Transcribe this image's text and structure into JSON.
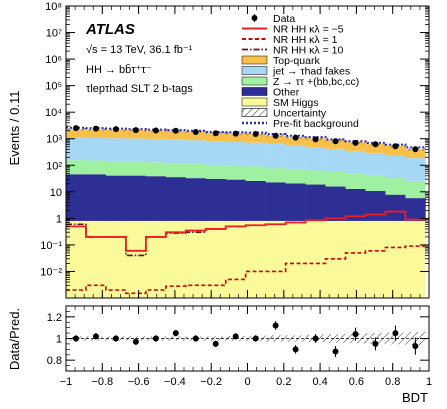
{
  "chart_data": [
    {
      "type": "bar",
      "stacked": true,
      "log_y": true,
      "ylabel": "Events / 0.11",
      "ylim": [
        0.001,
        100000000
      ],
      "xlim": [
        -1,
        1
      ],
      "y_tick_labels": [
        "10⁻²",
        "10⁻¹",
        "1",
        "10",
        "10²",
        "10³",
        "10⁴",
        "10⁵",
        "10⁶",
        "10⁷",
        "10⁸"
      ],
      "y_tick_values": [
        0.01,
        0.1,
        1,
        10,
        100,
        1000,
        10000,
        100000,
        1000000,
        10000000,
        100000000
      ],
      "x_edges": [
        -1,
        -0.89,
        -0.78,
        -0.67,
        -0.56,
        -0.45,
        -0.34,
        -0.23,
        -0.12,
        -0.01,
        0.1,
        0.21,
        0.32,
        0.43,
        0.54,
        0.65,
        0.76,
        0.87,
        0.98
      ],
      "annotations": {
        "experiment": "ATLAS",
        "energy": "√s = 13 TeV, 36.1 fb⁻¹",
        "process": "HH → bb̄τ⁺τ⁻",
        "channel": "τlepτhad SLT 2 b-tags"
      },
      "legend_position": "top-right",
      "legend": [
        {
          "key": "data",
          "label": "Data"
        },
        {
          "key": "sig_m5",
          "label": "NR HH κλ = −5"
        },
        {
          "key": "sig_1",
          "label": "NR HH κλ = 1"
        },
        {
          "key": "sig_10",
          "label": "NR HH κλ = 10"
        },
        {
          "key": "top",
          "label": "Top-quark"
        },
        {
          "key": "fake",
          "label": "jet → τhad fakes"
        },
        {
          "key": "ztt",
          "label": "Z → ττ +(bb,bc,cc)"
        },
        {
          "key": "other",
          "label": "Other"
        },
        {
          "key": "smh",
          "label": "SM Higgs"
        },
        {
          "key": "unc",
          "label": "Uncertainty"
        },
        {
          "key": "prefit",
          "label": "Pre-fit background"
        }
      ],
      "colors": {
        "top": "#f7c04a",
        "fake": "#a6d8f5",
        "ztt": "#9ff0a0",
        "other": "#2e2f94",
        "smh": "#fafa9b",
        "sig_m5": "#ee1c24",
        "sig_1": "#d40000",
        "sig_10": "#6b1010",
        "prefit": "#2326c6"
      },
      "series": [
        {
          "name": "SM Higgs",
          "key": "smh",
          "values": [
            0.8,
            0.8,
            0.8,
            0.8,
            0.8,
            0.8,
            0.8,
            0.8,
            0.8,
            0.8,
            0.8,
            0.8,
            0.8,
            0.8,
            0.8,
            0.8,
            0.8,
            0.8
          ]
        },
        {
          "name": "Other",
          "key": "other",
          "values": [
            45,
            45,
            40,
            40,
            38,
            35,
            32,
            30,
            28,
            25,
            22,
            20,
            18,
            15,
            12,
            10,
            7,
            5
          ]
        },
        {
          "name": "Z → ττ +(bb,bc,cc)",
          "key": "ztt",
          "values": [
            110,
            105,
            100,
            95,
            90,
            85,
            80,
            72,
            70,
            65,
            55,
            50,
            45,
            40,
            35,
            30,
            25,
            20
          ]
        },
        {
          "name": "jet → τhad fakes",
          "key": "fake",
          "values": [
            950,
            920,
            900,
            880,
            860,
            820,
            760,
            700,
            650,
            620,
            560,
            480,
            420,
            360,
            300,
            240,
            200,
            160
          ]
        },
        {
          "name": "Top-quark",
          "key": "top",
          "values": [
            1200,
            1200,
            1150,
            1100,
            1080,
            1050,
            1000,
            900,
            850,
            800,
            700,
            600,
            550,
            480,
            400,
            350,
            300,
            220
          ]
        }
      ],
      "data_points": {
        "x": [
          -0.945,
          -0.835,
          -0.725,
          -0.615,
          -0.505,
          -0.395,
          -0.285,
          -0.175,
          -0.065,
          0.045,
          0.155,
          0.265,
          0.375,
          0.485,
          0.595,
          0.705,
          0.815,
          0.925
        ],
        "y": [
          2500,
          2400,
          2300,
          2100,
          2050,
          2000,
          1800,
          1600,
          1550,
          1500,
          1300,
          1100,
          950,
          800,
          700,
          620,
          520,
          400
        ]
      },
      "prefit_background": [
        2600,
        2500,
        2400,
        2300,
        2200,
        2100,
        2000,
        1800,
        1750,
        1700,
        1500,
        1300,
        1150,
        950,
        800,
        700,
        600,
        470
      ],
      "signals": {
        "sig_m5": [
          0.5,
          0.2,
          0.2,
          0.06,
          0.2,
          0.3,
          0.35,
          0.4,
          0.5,
          0.55,
          0.6,
          0.7,
          0.85,
          1.0,
          1.2,
          1.4,
          1.8,
          0.9
        ],
        "sig_1": [
          0.002,
          0.003,
          0.002,
          0.0015,
          0.002,
          0.0028,
          0.003,
          0.003,
          0.005,
          0.01,
          0.01,
          0.02,
          0.02,
          0.03,
          0.05,
          0.06,
          0.08,
          0.09
        ],
        "sig_10": [
          0.6,
          0.2,
          0.2,
          0.04,
          0.2,
          0.28,
          0.3,
          0.4,
          0.5,
          0.55,
          0.6,
          0.7,
          0.85,
          1.0,
          1.2,
          1.4,
          1.8,
          0.9
        ]
      }
    },
    {
      "type": "scatter",
      "ylabel": "Data/Pred.",
      "xlabel": "BDT",
      "ylim": [
        0.7,
        1.3
      ],
      "xlim": [
        -1,
        1
      ],
      "y_tick_labels": [
        "0.8",
        "1",
        "1.2"
      ],
      "y_tick_values": [
        0.8,
        1.0,
        1.2
      ],
      "x_tick_labels": [
        "−1",
        "−0.8",
        "−0.6",
        "−0.4",
        "−0.2",
        "0",
        "0.2",
        "0.4",
        "0.6",
        "0.8",
        "1"
      ],
      "x_tick_values": [
        -1,
        -0.8,
        -0.6,
        -0.4,
        -0.2,
        0,
        0.2,
        0.4,
        0.6,
        0.8,
        1
      ],
      "x": [
        -0.945,
        -0.835,
        -0.725,
        -0.615,
        -0.505,
        -0.395,
        -0.285,
        -0.175,
        -0.065,
        0.045,
        0.155,
        0.265,
        0.375,
        0.485,
        0.595,
        0.705,
        0.815,
        0.925
      ],
      "y": [
        1.0,
        1.02,
        1.0,
        0.97,
        1.0,
        1.05,
        1.0,
        0.95,
        1.02,
        1.0,
        1.12,
        0.9,
        1.0,
        0.88,
        1.04,
        0.95,
        1.05,
        0.93
      ],
      "yerr": [
        0.03,
        0.03,
        0.03,
        0.03,
        0.03,
        0.03,
        0.03,
        0.03,
        0.03,
        0.03,
        0.04,
        0.04,
        0.04,
        0.05,
        0.06,
        0.06,
        0.07,
        0.08
      ],
      "band_halfwidth": [
        0.02,
        0.02,
        0.02,
        0.02,
        0.02,
        0.02,
        0.02,
        0.02,
        0.025,
        0.025,
        0.03,
        0.03,
        0.035,
        0.04,
        0.045,
        0.05,
        0.055,
        0.06
      ]
    }
  ]
}
